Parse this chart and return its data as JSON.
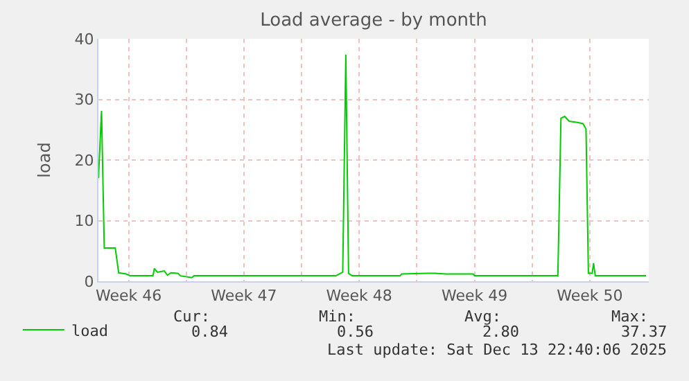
{
  "chart_data": {
    "type": "line",
    "title": "Load average - by month",
    "ylabel": "load",
    "x": [
      "2025-11-10T16:00",
      "2025-11-10T20:30",
      "2025-11-11T00:30",
      "2025-11-11T16:30",
      "2025-11-11T21:30",
      "2025-11-12T08:30",
      "2025-11-12T14:00",
      "2025-11-13T23:30",
      "2025-11-14T01:30",
      "2025-11-14T06:00",
      "2025-11-14T16:00",
      "2025-11-14T20:30",
      "2025-11-15T02:00",
      "2025-11-15T12:00",
      "2025-11-15T15:30",
      "2025-11-16T08:00",
      "2025-11-16T11:30",
      "2025-11-21T18:00",
      "2025-11-25T02:00",
      "2025-11-25T12:00",
      "2025-11-25T16:30",
      "2025-11-25T20:30",
      "2025-11-26T01:30",
      "2025-11-28T23:30",
      "2025-11-29T02:00",
      "2025-11-30T16:00",
      "2025-12-01T02:00",
      "2025-12-01T18:00",
      "2025-12-03T10:00",
      "2025-12-03T12:00",
      "2025-12-05T22:00",
      "2025-12-08T13:30",
      "2025-12-08T18:00",
      "2025-12-08T23:30",
      "2025-12-09T06:00",
      "2025-12-09T18:00",
      "2025-12-10T02:00",
      "2025-12-10T06:30",
      "2025-12-10T10:00",
      "2025-12-10T15:30",
      "2025-12-10T17:30",
      "2025-12-10T20:00",
      "2025-12-13T22:00"
    ],
    "series": [
      {
        "name": "load",
        "color": "#00cc00",
        "values": [
          17,
          28.1,
          5.5,
          5.5,
          1.4,
          1.2,
          0.9,
          0.9,
          2.1,
          1.5,
          1.7,
          1.0,
          1.4,
          1.3,
          0.9,
          0.6,
          0.9,
          0.9,
          0.9,
          1.5,
          37.4,
          1.3,
          0.9,
          0.9,
          1.2,
          1.3,
          1.3,
          1.2,
          1.2,
          0.9,
          0.9,
          0.9,
          26.9,
          27.2,
          26.4,
          26.2,
          26.0,
          25.1,
          1.3,
          1.3,
          3.0,
          0.9,
          0.9
        ]
      }
    ],
    "xlim": [
      "2025-11-10T16:00",
      "2025-12-14T02:00"
    ],
    "xticks": [
      {
        "value": "2025-11-12T12:00",
        "label": "Week 46"
      },
      {
        "value": "2025-11-16",
        "label": null
      },
      {
        "value": "2025-11-19T12:00",
        "label": "Week 47"
      },
      {
        "value": "2025-11-23",
        "label": null
      },
      {
        "value": "2025-11-26T12:00",
        "label": "Week 48"
      },
      {
        "value": "2025-11-30",
        "label": null
      },
      {
        "value": "2025-12-03T12:00",
        "label": "Week 49"
      },
      {
        "value": "2025-12-07",
        "label": null
      },
      {
        "value": "2025-12-10T12:00",
        "label": "Week 50"
      }
    ],
    "ylim": [
      0,
      40
    ],
    "yticks": [
      0,
      10,
      20,
      30,
      40
    ],
    "grid": true,
    "legend": "bottom left",
    "marker": "none",
    "line_style": "solid",
    "annotations": [
      "Cur:",
      "Min:",
      "Avg:",
      "Max:",
      "0.84",
      "0.56",
      "2.80",
      "37.37",
      "Last update: Sat Dec 13 22:40:06 2025"
    ]
  }
}
